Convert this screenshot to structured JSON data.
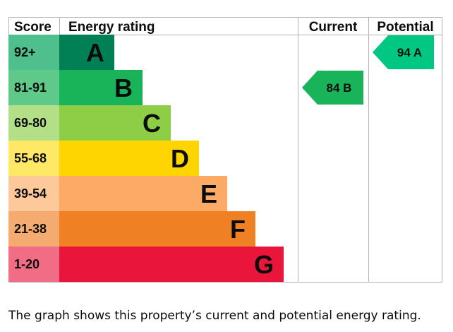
{
  "chart_data": {
    "type": "bar",
    "headers": {
      "score": "Score",
      "rating": "Energy rating",
      "current": "Current",
      "potential": "Potential"
    },
    "bands": [
      {
        "letter": "A",
        "range": "92+",
        "min": 92,
        "max": 100,
        "band_color": "#008054",
        "score_color": "#4fbf8d"
      },
      {
        "letter": "B",
        "range": "81-91",
        "min": 81,
        "max": 91,
        "band_color": "#19b459",
        "score_color": "#5fc98a"
      },
      {
        "letter": "C",
        "range": "69-80",
        "min": 69,
        "max": 80,
        "band_color": "#8dce46",
        "score_color": "#b3df86"
      },
      {
        "letter": "D",
        "range": "55-68",
        "min": 55,
        "max": 68,
        "band_color": "#ffd500",
        "score_color": "#ffe866"
      },
      {
        "letter": "E",
        "range": "39-54",
        "min": 39,
        "max": 54,
        "band_color": "#fcaa65",
        "score_color": "#fdc89a"
      },
      {
        "letter": "F",
        "range": "21-38",
        "min": 21,
        "max": 38,
        "band_color": "#ef8023",
        "score_color": "#f5ab6f"
      },
      {
        "letter": "G",
        "range": "1-20",
        "min": 1,
        "max": 20,
        "band_color": "#e9153b",
        "score_color": "#f06d85"
      }
    ],
    "current": {
      "value": 84,
      "letter": "B",
      "label": "84  B",
      "color": "#19b459"
    },
    "potential": {
      "value": 94,
      "letter": "A",
      "label": "94  A",
      "color": "#00c781"
    }
  },
  "caption": "The graph shows this property’s current and potential energy rating."
}
